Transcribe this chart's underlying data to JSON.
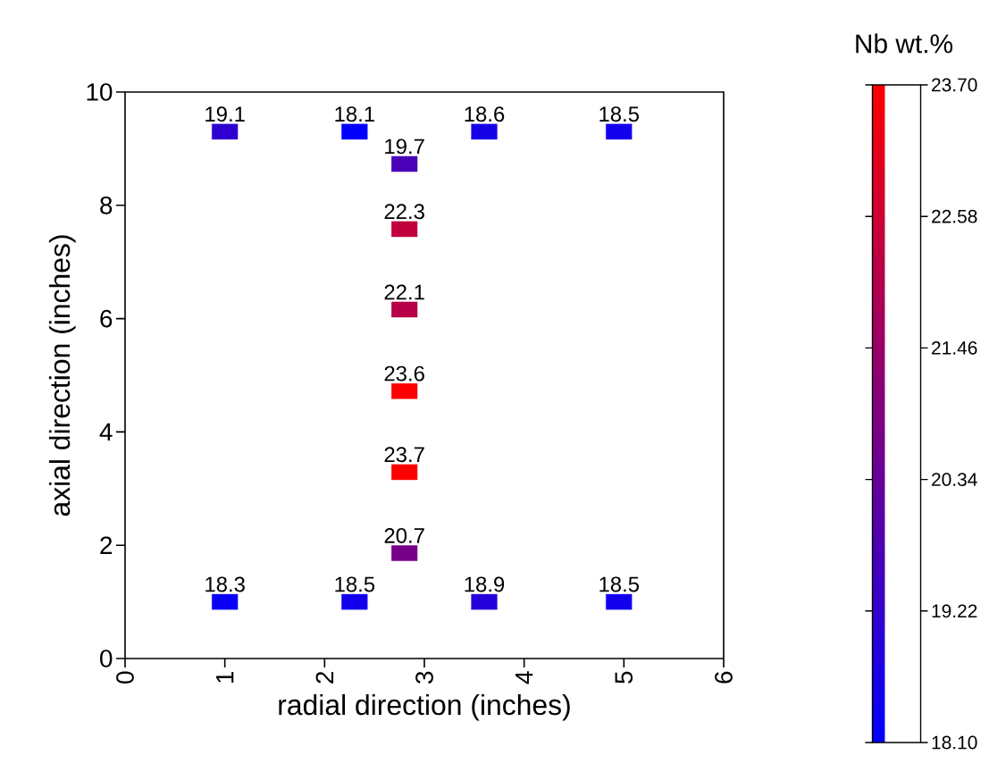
{
  "chart_data": {
    "type": "scatter",
    "xlabel": "radial direction (inches)",
    "ylabel": "axial direction (inches)",
    "clabel": "Nb wt.%",
    "x": [
      1.0,
      2.3,
      3.6,
      4.95,
      2.8,
      2.8,
      2.8,
      2.8,
      2.8,
      2.8,
      1.0,
      2.3,
      3.6,
      4.95
    ],
    "values": [
      9.3,
      9.3,
      9.3,
      9.3,
      8.73,
      7.58,
      6.16,
      4.72,
      3.29,
      1.86,
      1.0,
      1.0,
      1.0,
      1.0
    ],
    "cvalues": [
      19.1,
      18.1,
      18.6,
      18.5,
      19.7,
      22.3,
      22.1,
      23.6,
      23.7,
      20.7,
      18.3,
      18.5,
      18.9,
      18.5
    ],
    "xlim": [
      0,
      6
    ],
    "ylim": [
      0,
      10
    ],
    "xticks": [
      0,
      1,
      2,
      3,
      4,
      5,
      6
    ],
    "yticks": [
      0,
      2,
      4,
      6,
      8,
      10
    ],
    "clim": [
      18.1,
      23.7
    ],
    "cticks": [
      {
        "value": 18.1,
        "label": "18.10"
      },
      {
        "value": 19.22,
        "label": "19.22"
      },
      {
        "value": 20.34,
        "label": "20.34"
      },
      {
        "value": 21.46,
        "label": "21.46"
      },
      {
        "value": 22.58,
        "label": "22.58"
      },
      {
        "value": 23.7,
        "label": "23.70"
      }
    ],
    "annotations": [
      {
        "text": "19.1",
        "x": 1.0,
        "y": 9.3
      },
      {
        "text": "18.1",
        "x": 2.3,
        "y": 9.3
      },
      {
        "text": "18.6",
        "x": 3.6,
        "y": 9.3
      },
      {
        "text": "18.5",
        "x": 4.95,
        "y": 9.3
      },
      {
        "text": "19.7",
        "x": 2.8,
        "y": 8.73
      },
      {
        "text": "22.3",
        "x": 2.8,
        "y": 7.58
      },
      {
        "text": "22.1",
        "x": 2.8,
        "y": 6.16
      },
      {
        "text": "23.6",
        "x": 2.8,
        "y": 4.72
      },
      {
        "text": "23.7",
        "x": 2.8,
        "y": 3.29
      },
      {
        "text": "20.7",
        "x": 2.8,
        "y": 1.86
      },
      {
        "text": "18.3",
        "x": 1.0,
        "y": 1.0
      },
      {
        "text": "18.5",
        "x": 2.3,
        "y": 1.0
      },
      {
        "text": "18.9",
        "x": 3.6,
        "y": 1.0
      },
      {
        "text": "18.5",
        "x": 4.95,
        "y": 1.0
      }
    ],
    "marker": "square"
  }
}
